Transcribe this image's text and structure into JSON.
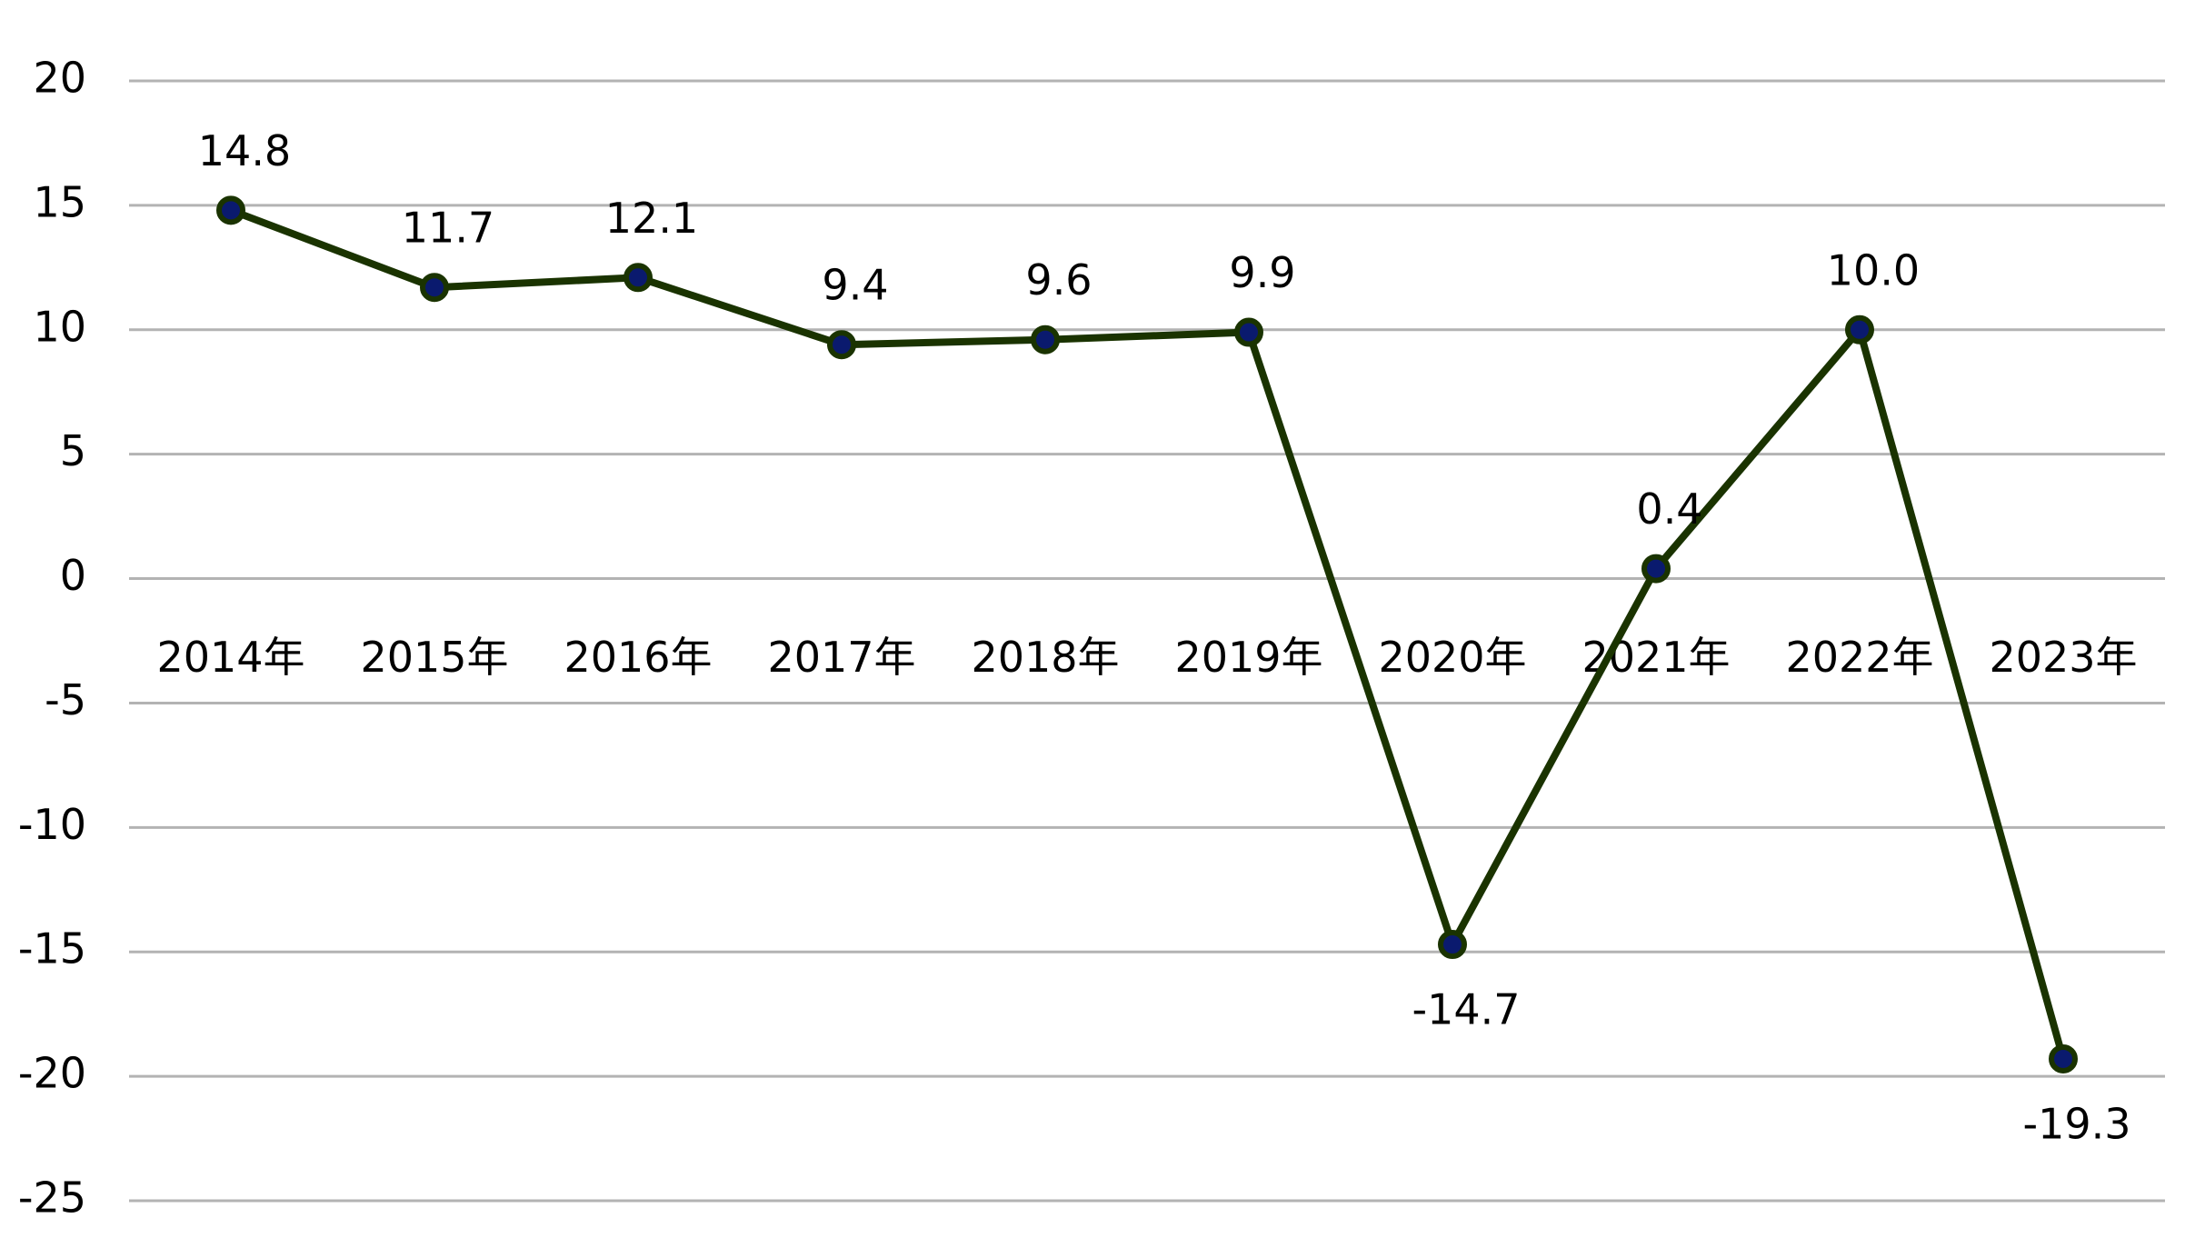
{
  "chart_data": {
    "type": "line",
    "categories": [
      "2014年",
      "2015年",
      "2016年",
      "2017年",
      "2018年",
      "2019年",
      "2020年",
      "2021年",
      "2022年",
      "2023年"
    ],
    "series": [
      {
        "color": "#1a3300",
        "marker_color": "#0a1a6e",
        "values": [
          14.8,
          11.7,
          12.1,
          9.4,
          9.6,
          9.9,
          -14.7,
          0.4,
          10.0,
          -19.3
        ],
        "value_labels": [
          "14.8",
          "11.7",
          "12.1",
          "9.4",
          "9.6",
          "9.9",
          "-14.7",
          "0.4",
          "10.0",
          "-19.3"
        ]
      }
    ],
    "ylim": [
      -25,
      20
    ],
    "yticks": [
      -25,
      -20,
      -15,
      -10,
      -5,
      0,
      5,
      10,
      15,
      20
    ],
    "grid": true
  }
}
